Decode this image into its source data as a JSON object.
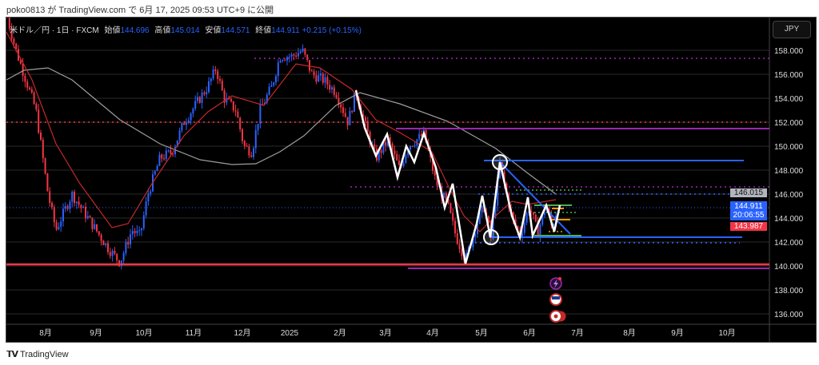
{
  "published": "poko0813 が TradingView.com で 6月 17, 2025 09:53 UTC+9 に公開",
  "legend": {
    "symbol": "米ドル／円 · 1日 · FXCM",
    "open_label": "始値",
    "open": "144.696",
    "high_label": "高値",
    "high": "145.014",
    "low_label": "安値",
    "low": "144.571",
    "close_label": "終値",
    "close": "144.911",
    "change": "+0.215 (+0.15%)"
  },
  "currency_button": "JPY",
  "price_axis": [
    "158.000",
    "156.000",
    "154.000",
    "152.000",
    "150.000",
    "148.000",
    "146.000",
    "144.000",
    "142.000",
    "140.000",
    "138.000",
    "136.000"
  ],
  "price_tags": {
    "ma_value": "146.015",
    "last_price": "144.911",
    "countdown": "20:06:55",
    "ma2_value": "143.987"
  },
  "time_axis": [
    "8月",
    "9月",
    "10月",
    "11月",
    "12月",
    "2025",
    "2月",
    "3月",
    "4月",
    "5月",
    "6月",
    "7月",
    "8月",
    "9月",
    "10月"
  ],
  "brand": "TradingView",
  "colors": {
    "up": "#2962ff",
    "down": "#f23645",
    "bg": "#000000",
    "purple": "#9c27b0",
    "green": "#4caf50",
    "orange": "#ff9800"
  }
}
